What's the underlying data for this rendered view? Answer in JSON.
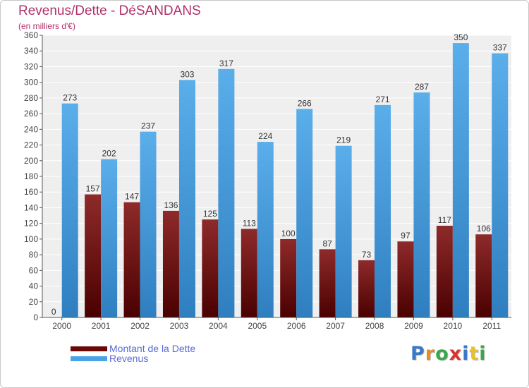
{
  "chart_data": {
    "type": "bar",
    "title": "Revenus/Dette - DéSANDANS",
    "subtitle": "(en milliers d'€)",
    "categories": [
      "2000",
      "2001",
      "2002",
      "2003",
      "2004",
      "2005",
      "2006",
      "2007",
      "2008",
      "2009",
      "2010",
      "2011"
    ],
    "series": [
      {
        "name": "Montant de la Dette",
        "values": [
          0,
          157,
          147,
          136,
          125,
          113,
          100,
          87,
          73,
          97,
          117,
          106
        ],
        "color": "#7a1010"
      },
      {
        "name": "Revenus",
        "values": [
          273,
          202,
          237,
          303,
          317,
          224,
          266,
          219,
          271,
          287,
          350,
          337
        ],
        "color": "#4aa3e6"
      }
    ],
    "ylim": [
      0,
      360
    ],
    "yticks": [
      0,
      20,
      40,
      60,
      80,
      100,
      120,
      140,
      160,
      180,
      200,
      220,
      240,
      260,
      280,
      300,
      320,
      340,
      360
    ],
    "grid": true,
    "legend_position": "bottom-left"
  },
  "logo": {
    "text": "Proxiti",
    "colors": [
      "#3a78c8",
      "#e88a2a",
      "#3aa84a",
      "#d8342c",
      "#3a78c8",
      "#e8c02a",
      "#3aa84a"
    ]
  }
}
